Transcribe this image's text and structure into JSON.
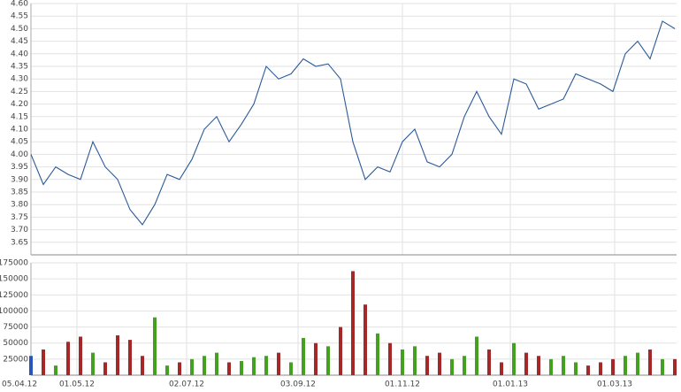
{
  "chart_data": [
    {
      "type": "line",
      "color": "#2c5a98",
      "grid": true,
      "x": [
        "05.04.12",
        "12.04.12",
        "19.04.12",
        "26.04.12",
        "03.05.12",
        "10.05.12",
        "17.05.12",
        "24.05.12",
        "31.05.12",
        "07.06.12",
        "14.06.12",
        "21.06.12",
        "28.06.12",
        "05.07.12",
        "12.07.12",
        "19.07.12",
        "26.07.12",
        "02.08.12",
        "09.08.12",
        "16.08.12",
        "23.08.12",
        "30.08.12",
        "06.09.12",
        "13.09.12",
        "20.09.12",
        "27.09.12",
        "04.10.12",
        "11.10.12",
        "18.10.12",
        "25.10.12",
        "01.11.12",
        "08.11.12",
        "15.11.12",
        "22.11.12",
        "29.11.12",
        "06.12.12",
        "13.12.12",
        "20.12.12",
        "27.12.12",
        "03.01.13",
        "10.01.13",
        "17.01.13",
        "24.01.13",
        "31.01.13",
        "07.02.13",
        "14.02.13",
        "21.02.13",
        "28.02.13",
        "07.03.13",
        "14.03.13",
        "21.03.13",
        "28.03.13",
        "04.04.13"
      ],
      "values": [
        4.0,
        3.88,
        3.95,
        3.92,
        3.9,
        4.05,
        3.95,
        3.9,
        3.78,
        3.72,
        3.8,
        3.92,
        3.9,
        3.98,
        4.1,
        4.15,
        4.05,
        4.12,
        4.2,
        4.35,
        4.3,
        4.32,
        4.38,
        4.35,
        4.36,
        4.3,
        4.05,
        3.9,
        3.95,
        3.93,
        4.05,
        4.1,
        3.97,
        3.95,
        4.0,
        4.15,
        4.25,
        4.15,
        4.08,
        4.3,
        4.28,
        4.18,
        4.2,
        4.22,
        4.32,
        4.3,
        4.28,
        4.25,
        4.4,
        4.45,
        4.38,
        4.53,
        4.5
      ],
      "xlim": [
        "05.04.12",
        "05.04.13"
      ],
      "ylim": [
        3.6,
        4.6
      ],
      "yticks": [
        {
          "value": 3.65,
          "label": "3.65"
        },
        {
          "value": 3.7,
          "label": "3.70"
        },
        {
          "value": 3.75,
          "label": "3.75"
        },
        {
          "value": 3.8,
          "label": "3.80"
        },
        {
          "value": 3.85,
          "label": "3.85"
        },
        {
          "value": 3.9,
          "label": "3.90"
        },
        {
          "value": 3.95,
          "label": "3.95"
        },
        {
          "value": 4.0,
          "label": "4.00"
        },
        {
          "value": 4.05,
          "label": "4.05"
        },
        {
          "value": 4.1,
          "label": "4.10"
        },
        {
          "value": 4.15,
          "label": "4.15"
        },
        {
          "value": 4.2,
          "label": "4.20"
        },
        {
          "value": 4.25,
          "label": "4.25"
        },
        {
          "value": 4.3,
          "label": "4.30"
        },
        {
          "value": 4.35,
          "label": "4.35"
        },
        {
          "value": 4.4,
          "label": "4.40"
        },
        {
          "value": 4.45,
          "label": "4.45"
        },
        {
          "value": 4.5,
          "label": "4.50"
        },
        {
          "value": 4.55,
          "label": "4.55"
        },
        {
          "value": 4.6,
          "label": "4.60"
        }
      ]
    },
    {
      "type": "bar",
      "up_color": "#44a020",
      "down_color": "#a42828",
      "flat_color": "#2a54b8",
      "grid": true,
      "values": [
        30000,
        40000,
        15000,
        52000,
        60000,
        35000,
        20000,
        62000,
        55000,
        30000,
        90000,
        15000,
        20000,
        25000,
        30000,
        35000,
        20000,
        22000,
        28000,
        30000,
        35000,
        20000,
        58000,
        50000,
        45000,
        75000,
        162000,
        110000,
        65000,
        50000,
        40000,
        45000,
        30000,
        35000,
        25000,
        30000,
        60000,
        40000,
        20000,
        50000,
        35000,
        30000,
        25000,
        30000,
        20000,
        15000,
        20000,
        25000,
        30000,
        35000,
        40000,
        25000,
        25000
      ],
      "xlim": [
        "05.04.12",
        "05.04.13"
      ],
      "xticks": [
        "05.04.12",
        "01.05.12",
        "02.07.12",
        "03.09.12",
        "01.11.12",
        "01.01.13",
        "01.03.13"
      ],
      "ylim": [
        0,
        175000
      ],
      "yticks": [
        25000,
        50000,
        75000,
        100000,
        125000,
        150000,
        175000
      ]
    }
  ]
}
